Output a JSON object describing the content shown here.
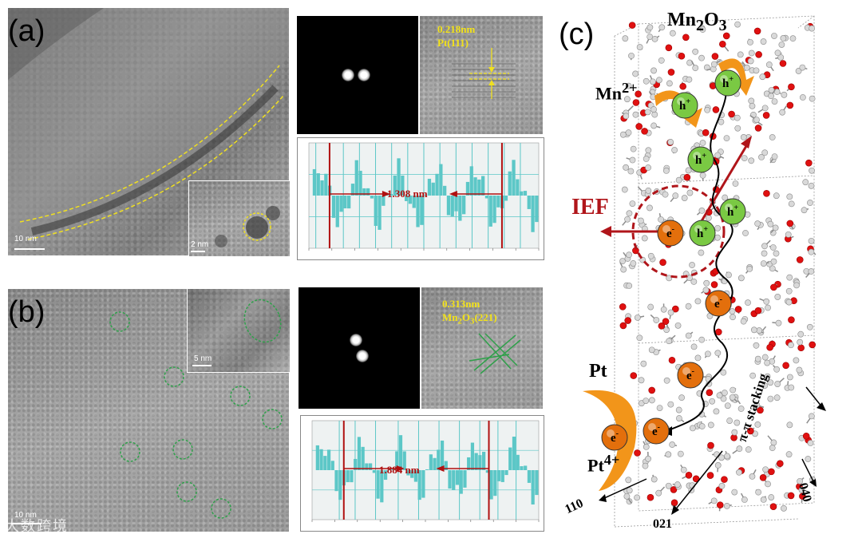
{
  "panels": {
    "a": {
      "label": "(a)",
      "scale_main": "10 nm",
      "scale_inset": "2 nm",
      "hrtem_text": [
        "0.218nm",
        "Pt(111)"
      ],
      "profile_label": "1.308 nm"
    },
    "b": {
      "label": "(b)",
      "scale_main": "10 nm",
      "scale_inset": "5 nm",
      "hrtem_text": [
        "0.313nm",
        "Mn2O3(221)"
      ],
      "profile_label": "1.884 nm"
    },
    "c": {
      "label": "(c)",
      "top_label": "Mn2O3",
      "mn_label": "Mn2+",
      "ief_label": "IEF",
      "pt_label": "Pt",
      "pt4_label": "Pt4+",
      "hole": "h+",
      "electron": "e-",
      "stacking_label": "π-π stacking",
      "axis_110": "110",
      "axis_021": "021",
      "axis_040": "040"
    }
  },
  "colors": {
    "dashed_yellow": "#f0e020",
    "circle_green": "#2fa04a",
    "profile_fill": "#5cc7c7",
    "marker_red": "#b01010",
    "ief_red": "#b0151a",
    "hole_green": "#7ac943",
    "electron_orange": "#e36f0c",
    "arrow_orange": "#f2951a"
  },
  "watermark": "大数跨境"
}
